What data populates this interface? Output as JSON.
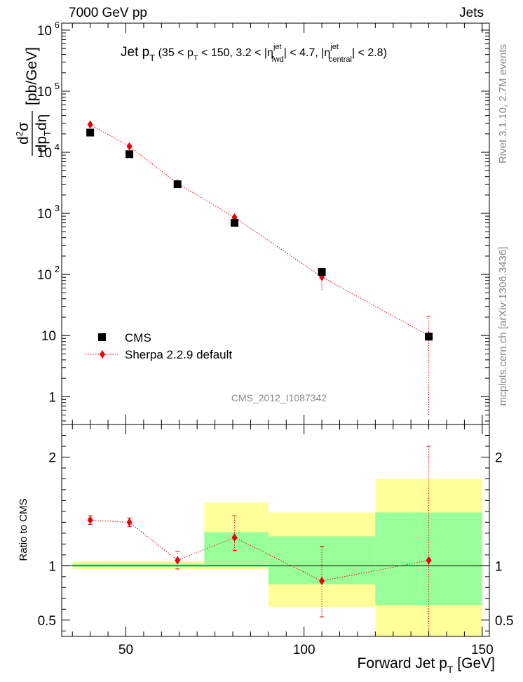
{
  "header": {
    "left": "7000 GeV pp",
    "right": "Jets"
  },
  "side_labels": {
    "rivet": "Rivet 3.1.10, 2.7M events",
    "mcplots": "mcplots.cern.ch [arXiv:1306.3436]"
  },
  "watermark": "CMS_2012_I1087342",
  "colors": {
    "data": "#000000",
    "mc": "#e8000b",
    "band_outer": "#ffff99",
    "band_inner": "#99ff99"
  },
  "chart_data": [
    {
      "type": "scatter",
      "title": "Jet p_T (35 < p_T < 150, 3.2 < |η^jet_fwd| < 4.7, |η^jet_central| < 2.8)",
      "ylabel": "d²σ / dp_T dη [pb/GeV]",
      "yscale": "log",
      "xlim": [
        32,
        152
      ],
      "ylim": [
        0.35,
        1300000
      ],
      "y_ticks": [
        {
          "v": 1,
          "label": "1"
        },
        {
          "v": 10,
          "label": "10"
        },
        {
          "v": 100,
          "label": "10",
          "exp": "2"
        },
        {
          "v": 1000,
          "label": "10",
          "exp": "3"
        },
        {
          "v": 10000,
          "label": "10",
          "exp": "4"
        },
        {
          "v": 100000,
          "label": "10",
          "exp": "5"
        },
        {
          "v": 1000000,
          "label": "10",
          "exp": "6"
        }
      ],
      "legend": {
        "position": "bottom-left",
        "entries": [
          "CMS",
          "Sherpa 2.2.9 default"
        ]
      },
      "series": [
        {
          "name": "CMS",
          "marker": "square",
          "x": [
            40,
            51,
            64.5,
            80.5,
            105,
            135
          ],
          "y": [
            21000,
            9300,
            3000,
            700,
            110,
            9.6
          ]
        },
        {
          "name": "Sherpa 2.2.9 default",
          "marker": "diamond",
          "x": [
            40,
            51,
            64.5,
            80.5,
            105,
            135
          ],
          "y": [
            28500,
            12500,
            3100,
            860,
            91,
            10
          ],
          "yerr_low": [
            0,
            0,
            0,
            0,
            35,
            9.5
          ],
          "yerr_high": [
            0,
            0,
            0,
            0,
            35,
            10.5
          ]
        }
      ]
    },
    {
      "type": "line",
      "ylabel": "Ratio to CMS",
      "xlabel": "Forward Jet p_T [GeV]",
      "xlim": [
        32,
        152
      ],
      "ylim": [
        0.35,
        2.3
      ],
      "x_ticks": [
        50,
        100,
        150
      ],
      "y_ticks": [
        0.5,
        1,
        2
      ],
      "bands": [
        {
          "x0": 35,
          "x1": 45,
          "outer": [
            0.97,
            1.04
          ],
          "inner": [
            0.99,
            1.02
          ]
        },
        {
          "x0": 45,
          "x1": 57,
          "outer": [
            0.97,
            1.04
          ],
          "inner": [
            0.99,
            1.02
          ]
        },
        {
          "x0": 57,
          "x1": 72,
          "outer": [
            0.97,
            1.04
          ],
          "inner": [
            0.99,
            1.02
          ]
        },
        {
          "x0": 72,
          "x1": 90,
          "outer": [
            0.97,
            1.58
          ],
          "inner": [
            0.99,
            1.31
          ]
        },
        {
          "x0": 90,
          "x1": 120,
          "outer": [
            0.62,
            1.49
          ],
          "inner": [
            0.83,
            1.27
          ]
        },
        {
          "x0": 120,
          "x1": 150,
          "outer": [
            0.35,
            1.8
          ],
          "inner": [
            0.64,
            1.49
          ]
        }
      ],
      "series": [
        {
          "name": "Sherpa 2.2.9 default",
          "x": [
            40,
            51,
            64.5,
            80.5,
            105,
            135
          ],
          "y": [
            1.42,
            1.4,
            1.05,
            1.26,
            0.86,
            1.05
          ],
          "yerr_low": [
            0.04,
            0.04,
            0.08,
            0.12,
            0.33,
            0.95
          ],
          "yerr_high": [
            0.04,
            0.04,
            0.08,
            0.2,
            0.32,
            1.05
          ]
        }
      ]
    }
  ]
}
